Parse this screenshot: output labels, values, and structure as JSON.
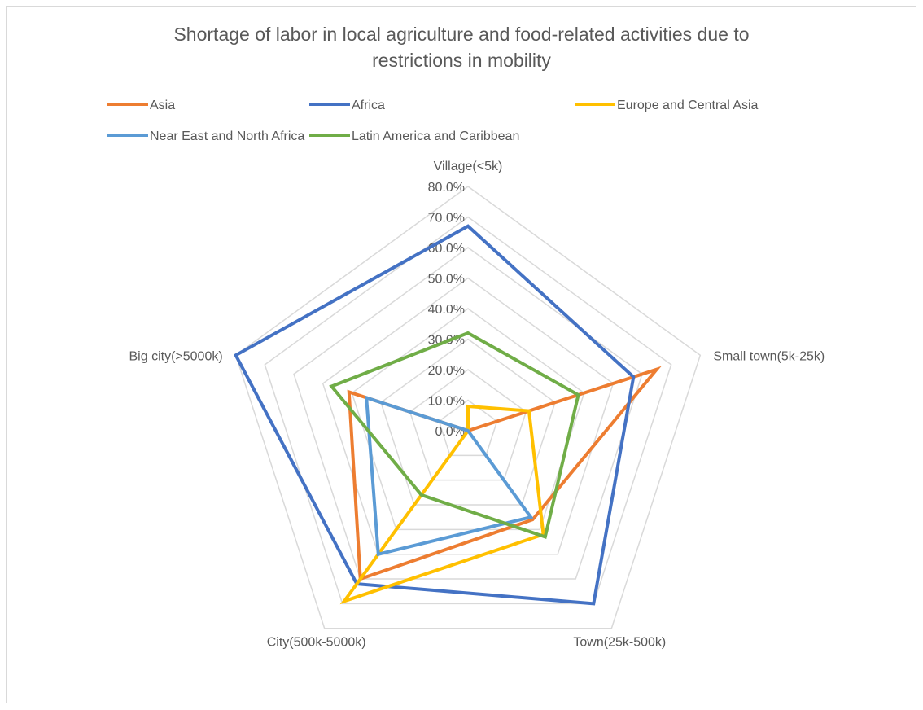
{
  "chart_data": {
    "type": "radar",
    "title_lines": [
      "Shortage of labor in local agriculture and food-related activities due to",
      "restrictions in mobility"
    ],
    "axes": [
      "Village(<5k)",
      "Small town(5k-25k)",
      "Town(25k-500k)",
      "City(500k-5000k)",
      "Big city(>5000k)"
    ],
    "tick_labels": [
      "0.0%",
      "10.0%",
      "20.0%",
      "30.0%",
      "40.0%",
      "50.0%",
      "60.0%",
      "70.0%",
      "80.0%"
    ],
    "range": [
      0,
      0.8
    ],
    "grid": true,
    "legend_position": "top",
    "series": [
      {
        "name": "Asia",
        "color": "#ED7D31",
        "values": [
          0.0,
          0.65,
          0.36,
          0.6,
          0.41
        ]
      },
      {
        "name": "Africa",
        "color": "#4472C4",
        "values": [
          0.67,
          0.57,
          0.7,
          0.62,
          0.8
        ]
      },
      {
        "name": "Europe and Central Asia",
        "color": "#FFC000",
        "values": [
          0.08,
          0.21,
          0.42,
          0.69,
          0.0
        ]
      },
      {
        "name": "Near East and North Africa",
        "color": "#5B9BD5",
        "values": [
          0.0,
          0.0,
          0.35,
          0.5,
          0.35
        ]
      },
      {
        "name": "Latin America and Caribbean",
        "color": "#70AD47",
        "values": [
          0.32,
          0.38,
          0.43,
          0.26,
          0.47
        ]
      }
    ]
  }
}
